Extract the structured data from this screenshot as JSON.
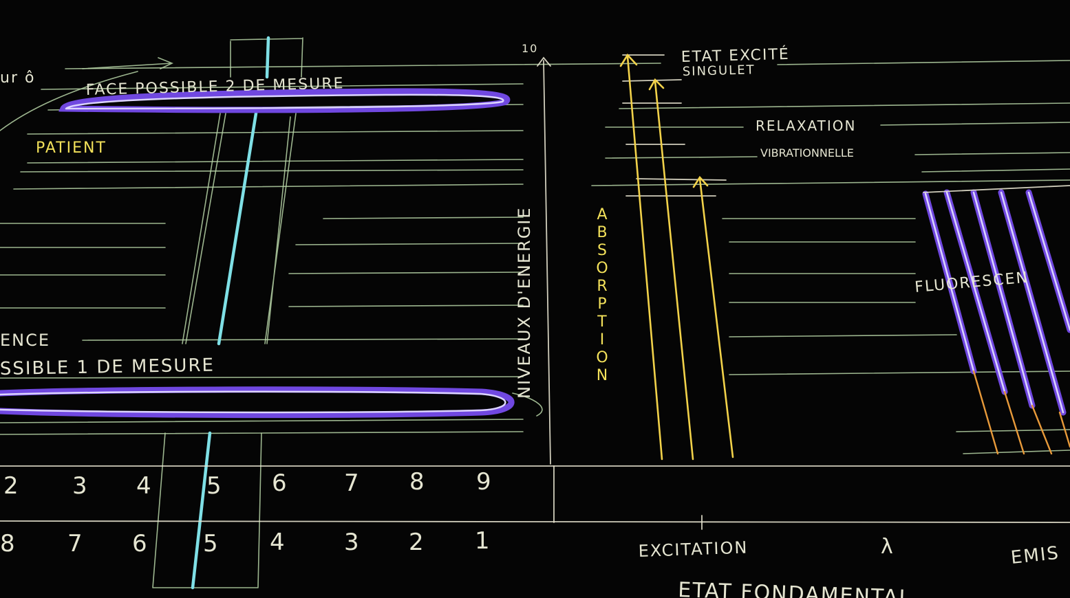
{
  "colors": {
    "board": "#050505",
    "chalk_white": "#e6e6d2",
    "chalk_green": "#b9d6a8",
    "chalk_yellow": "#f3e15a",
    "chalk_cyan": "#7fe0e6",
    "chalk_purple": "#7048e0",
    "chalk_orange": "#e89a3a"
  },
  "texts": {
    "top_left_fragment": "ur ô",
    "face2": "FACE POSSIBLE 2 DE MESURE",
    "patient": "PATIENT",
    "ence": "ENCE",
    "face1": "SSIBLE 1 DE MESURE",
    "niveaux": "NIVEAUX D'ENERGIE",
    "axis_top_label": "10",
    "absorption": "ABSORPTION",
    "etat_excite": "ETAT EXCITÉ",
    "singulet": "SINGULET",
    "relaxation": "RELAXATION",
    "vibrationnelle": "VIBRATIONNELLE",
    "fluorescence": "FLUORESCEN",
    "excitation": "EXCITATION",
    "lambda": "λ",
    "emission": "EMIS",
    "etat_fondamental": "ETAT FONDAMENTAL"
  },
  "scale_upper": [
    "2",
    "3",
    "4",
    "5",
    "6",
    "7",
    "8",
    "9"
  ],
  "scale_lower": [
    "8",
    "7",
    "6",
    "5",
    "4",
    "3",
    "2",
    "1"
  ]
}
